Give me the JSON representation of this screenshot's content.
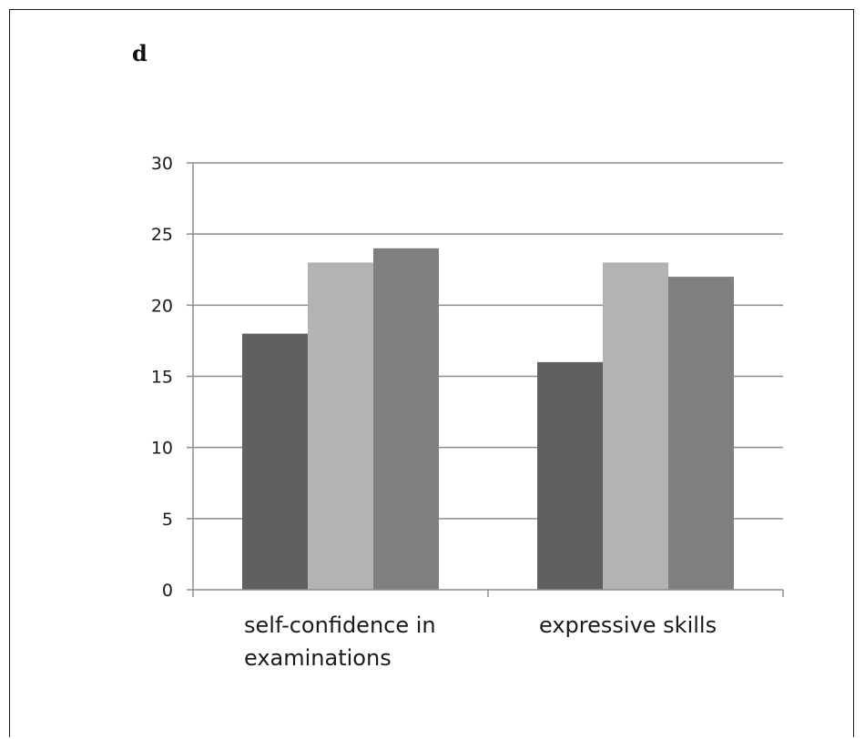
{
  "panel_label": "d",
  "colors": {
    "series": [
      "#606060",
      "#b3b3b3",
      "#808080"
    ],
    "gridline": "#8c8c8c",
    "axis": "#8c8c8c"
  },
  "chart_data": {
    "type": "bar",
    "categories": [
      [
        "self-confidence in",
        "examinations"
      ],
      [
        "expressive skills"
      ]
    ],
    "series": [
      {
        "values": [
          18,
          16
        ]
      },
      {
        "values": [
          23,
          23
        ]
      },
      {
        "values": [
          24,
          22
        ]
      }
    ],
    "ylim": [
      0,
      30
    ],
    "yticks": [
      0,
      5,
      10,
      15,
      20,
      25,
      30
    ],
    "grid": true,
    "legend": "none"
  }
}
